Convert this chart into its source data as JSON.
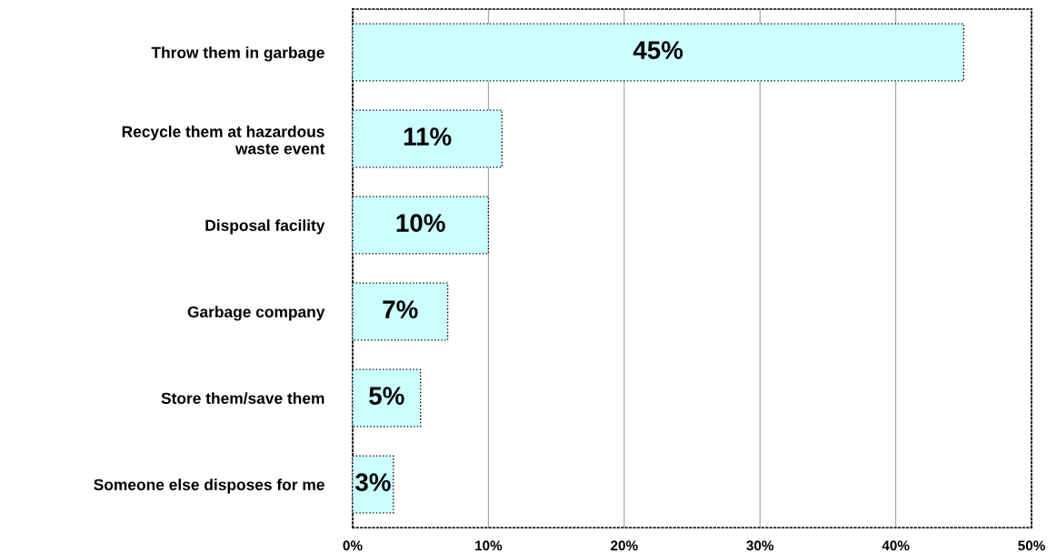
{
  "chart_data": {
    "type": "bar",
    "orientation": "horizontal",
    "categories": [
      "Throw them in garbage",
      "Recycle them at hazardous\nwaste event",
      "Disposal facility",
      "Garbage company",
      "Store them/save them",
      "Someone else disposes for me"
    ],
    "values": [
      45,
      11,
      10,
      7,
      5,
      3
    ],
    "value_labels": [
      "45%",
      "11%",
      "10%",
      "7%",
      "5%",
      "3%"
    ],
    "color": "#ccffff",
    "xlim": [
      0,
      50
    ],
    "xticks": [
      {
        "value": 0,
        "label": "0%"
      },
      {
        "value": 10,
        "label": "10%"
      },
      {
        "value": 20,
        "label": "20%"
      },
      {
        "value": 30,
        "label": "30%"
      },
      {
        "value": 40,
        "label": "40%"
      },
      {
        "value": 50,
        "label": "50%"
      }
    ],
    "grid": "x",
    "legend": false
  }
}
